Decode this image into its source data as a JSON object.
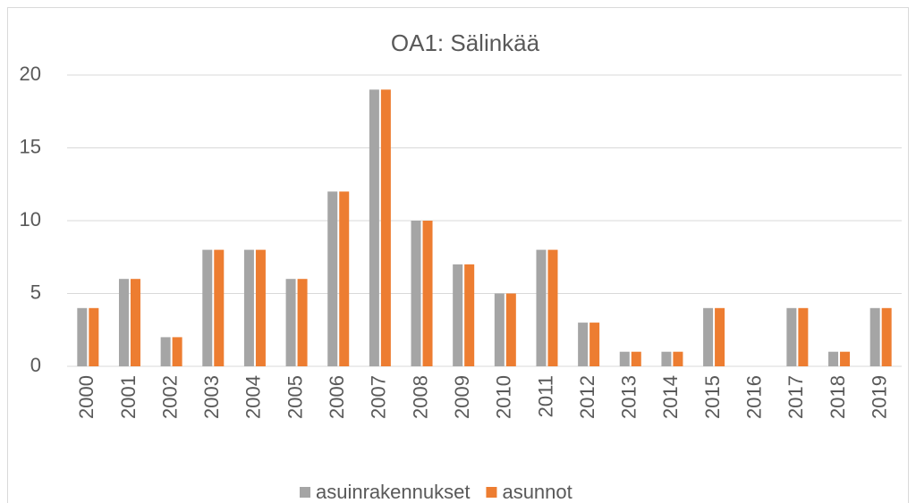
{
  "chart_data": {
    "type": "bar",
    "title": "OA1: Sälinkää",
    "categories": [
      "2000",
      "2001",
      "2002",
      "2003",
      "2004",
      "2005",
      "2006",
      "2007",
      "2008",
      "2009",
      "2010",
      "2011",
      "2012",
      "2013",
      "2014",
      "2015",
      "2016",
      "2017",
      "2018",
      "2019"
    ],
    "series": [
      {
        "name": "asuinrakennukset",
        "color": "#a5a5a5",
        "values": [
          4,
          6,
          2,
          8,
          8,
          6,
          12,
          19,
          10,
          7,
          5,
          8,
          3,
          1,
          1,
          4,
          0,
          4,
          1,
          4
        ]
      },
      {
        "name": "asunnot",
        "color": "#ed7d31",
        "values": [
          4,
          6,
          2,
          8,
          8,
          6,
          12,
          19,
          10,
          7,
          5,
          8,
          3,
          1,
          1,
          4,
          0,
          4,
          1,
          4
        ]
      }
    ],
    "ylim": [
      0,
      20
    ],
    "yticks": [
      0,
      5,
      10,
      15,
      20
    ],
    "grid": true,
    "legend": "bottom"
  }
}
